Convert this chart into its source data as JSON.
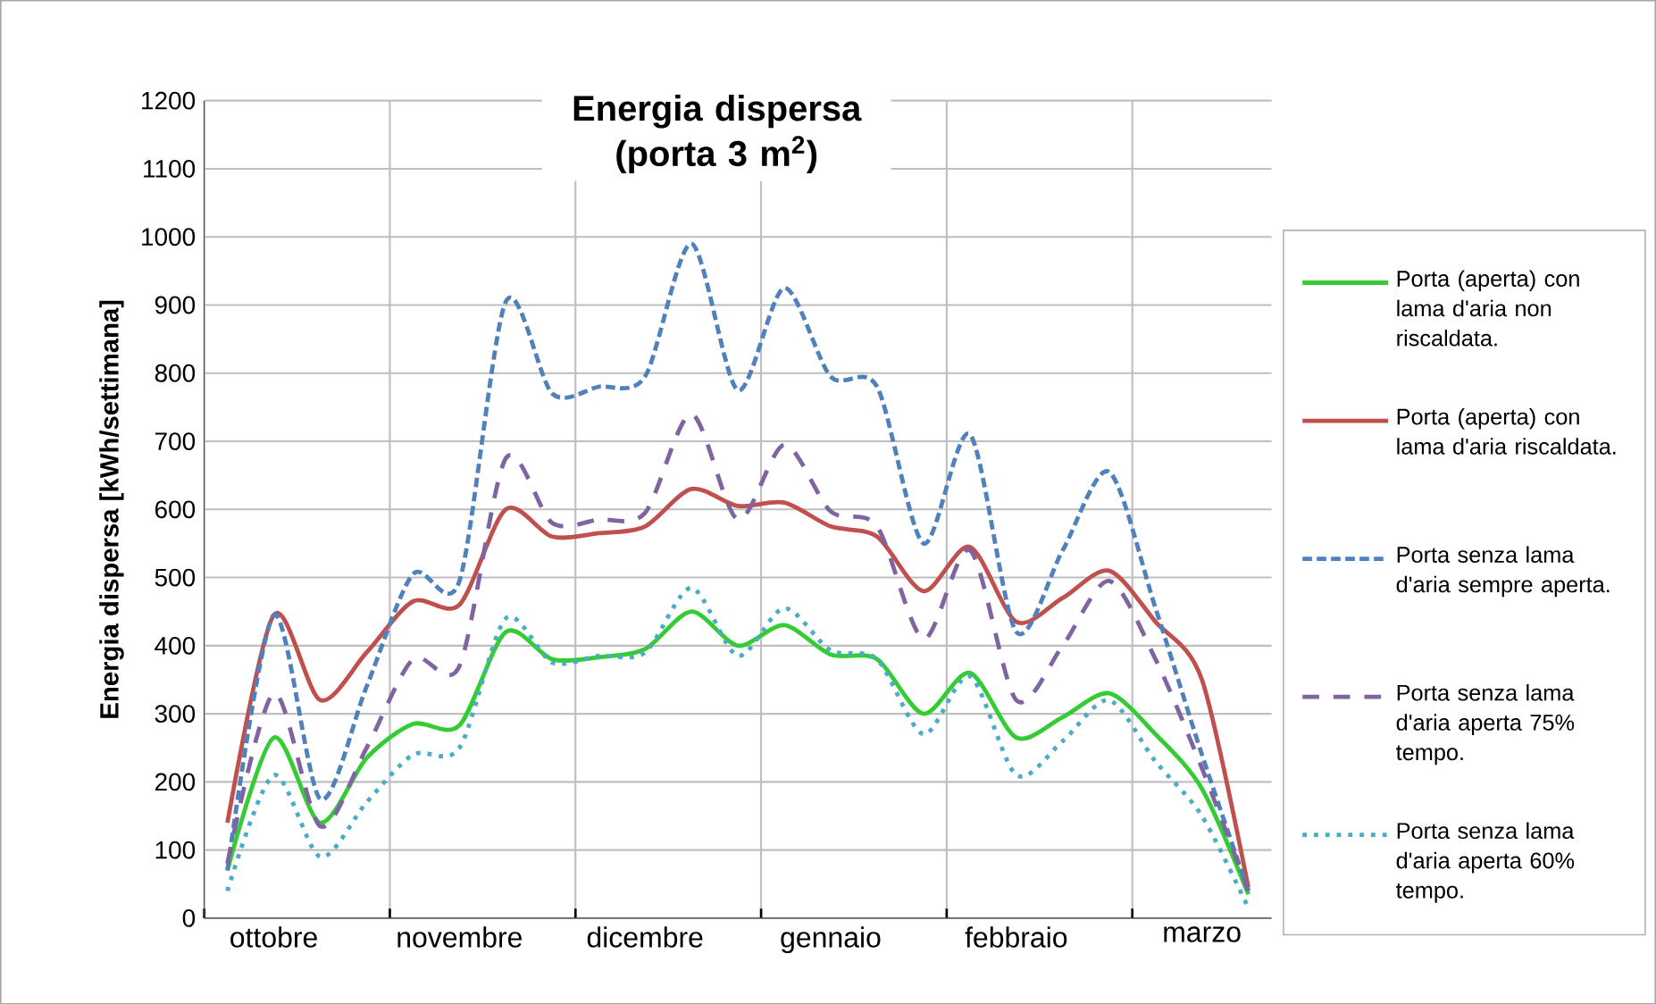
{
  "chart_data": {
    "type": "line",
    "title": "Energia dispersa (porta 3 m$^{2}$)",
    "ylabel": "Energia dispersa [kWh/settimana]",
    "categories": [
      null,
      "ottobre",
      null,
      null,
      null,
      "novembre",
      null,
      null,
      null,
      "dicembre",
      null,
      null,
      null,
      "gennaio",
      null,
      null,
      null,
      "febbraio",
      null,
      null,
      null,
      "marzo",
      null
    ],
    "ylim": [
      0,
      1200
    ],
    "yticks": [
      0,
      100,
      200,
      300,
      400,
      500,
      600,
      700,
      800,
      900,
      1000,
      1100,
      1200
    ],
    "grid": true,
    "legend": "right",
    "series": [
      {
        "name": "Porta (aperta) con lama d'aria non riscaldata.",
        "color": "#33cc33",
        "line_style": "solid",
        "values": [
          70,
          265,
          140,
          235,
          285,
          283,
          420,
          380,
          383,
          395,
          450,
          400,
          430,
          387,
          380,
          300,
          360,
          265,
          295,
          330,
          270,
          190,
          35
        ]
      },
      {
        "name": "Porta (aperta) con lama d'aria riscaldata.",
        "color": "#c0504d",
        "line_style": "solid",
        "values": [
          140,
          445,
          320,
          390,
          465,
          460,
          600,
          560,
          565,
          575,
          630,
          605,
          610,
          575,
          560,
          480,
          545,
          435,
          470,
          510,
          435,
          350,
          45
        ]
      },
      {
        "name": "Porta senza lama d'aria sempre aperta.",
        "color": "#4f81bd",
        "line_style": "dashed",
        "values": [
          70,
          445,
          175,
          340,
          505,
          495,
          905,
          770,
          780,
          795,
          990,
          775,
          925,
          795,
          780,
          550,
          710,
          420,
          540,
          655,
          455,
          240,
          40
        ]
      },
      {
        "name": "Porta senza lama d'aria aperta 75% tempo.",
        "color": "#8064a2",
        "line_style": "dashed",
        "values": [
          80,
          330,
          135,
          250,
          380,
          370,
          675,
          580,
          585,
          595,
          740,
          585,
          695,
          597,
          575,
          410,
          540,
          320,
          400,
          495,
          380,
          220,
          40
        ]
      },
      {
        "name": "Porta senza lama d'aria aperta 60% tempo.",
        "color": "#4bacc6",
        "line_style": "dotted",
        "values": [
          40,
          210,
          90,
          170,
          240,
          250,
          440,
          375,
          385,
          390,
          485,
          385,
          455,
          393,
          380,
          270,
          355,
          210,
          260,
          320,
          230,
          150,
          15
        ]
      }
    ]
  }
}
